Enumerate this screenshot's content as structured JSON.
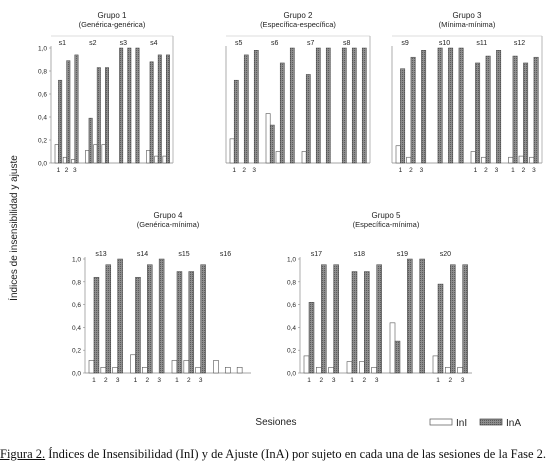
{
  "figure": {
    "ylabel": "Índices de insensibilidad y ajuste",
    "xlabel": "Sesiones",
    "legend": {
      "inl": "InI",
      "ina": "InA"
    },
    "caption_label": "Figura 2.",
    "caption_text": " Índices de Insensibilidad (InI) y de Ajuste (InA) por sujeto en cada una de las sesiones de la Fase 2."
  },
  "chart_data": [
    {
      "type": "bar",
      "title": "Grupo 1",
      "subtitle": "(Genérica-genérica)",
      "ylim": [
        0,
        1
      ],
      "yticks": [
        "0,0",
        "0,2",
        "0,4",
        "0,6",
        "0,8",
        "1,0"
      ],
      "subjects": [
        {
          "name": "s1",
          "sessions": [
            "1",
            "2",
            "3"
          ],
          "InI": [
            0.16,
            0.05,
            0.03
          ],
          "InA": [
            0.72,
            0.89,
            0.94
          ]
        },
        {
          "name": "s2",
          "sessions": [],
          "InI": [
            0.11,
            0.16,
            0.16
          ],
          "InA": [
            0.39,
            0.83,
            0.83
          ]
        },
        {
          "name": "s3",
          "sessions": [],
          "InI": [
            0.0,
            0.0,
            0.0
          ],
          "InA": [
            1.0,
            1.0,
            1.0
          ]
        },
        {
          "name": "s4",
          "sessions": [],
          "InI": [
            0.11,
            0.06,
            0.06
          ],
          "InA": [
            0.88,
            0.94,
            0.94
          ]
        }
      ]
    },
    {
      "type": "bar",
      "title": "Grupo 2",
      "subtitle": "(Específica-específica)",
      "ylim": [
        0,
        1
      ],
      "yticks": [],
      "subjects": [
        {
          "name": "s5",
          "sessions": [
            "1",
            "2",
            "3"
          ],
          "InI": [
            0.21,
            0.0,
            0.0
          ],
          "InA": [
            0.72,
            0.94,
            0.98
          ]
        },
        {
          "name": "s6",
          "sessions": [],
          "InI": [
            0.43,
            0.1,
            0.0
          ],
          "InA": [
            0.33,
            0.87,
            1.0
          ]
        },
        {
          "name": "s7",
          "sessions": [],
          "InI": [
            0.1,
            0.0,
            0.0
          ],
          "InA": [
            0.77,
            1.0,
            1.0
          ]
        },
        {
          "name": "s8",
          "sessions": [],
          "InI": [
            0.0,
            0.0,
            0.0
          ],
          "InA": [
            1.0,
            1.0,
            1.0
          ]
        }
      ]
    },
    {
      "type": "bar",
      "title": "Grupo 3",
      "subtitle": "(Mínima-mínima)",
      "ylim": [
        0,
        1
      ],
      "yticks": [],
      "subjects": [
        {
          "name": "s9",
          "sessions": [
            "1",
            "2",
            "3"
          ],
          "InI": [
            0.15,
            0.05,
            0.0
          ],
          "InA": [
            0.82,
            0.92,
            0.98
          ]
        },
        {
          "name": "s10",
          "sessions": [],
          "InI": [
            0.0,
            0.0,
            0.0
          ],
          "InA": [
            1.0,
            1.0,
            1.0
          ]
        },
        {
          "name": "s11",
          "sessions": [
            "1",
            "2",
            "3"
          ],
          "InI": [
            0.1,
            0.05,
            0.0
          ],
          "InA": [
            0.87,
            0.93,
            0.98
          ]
        },
        {
          "name": "s12",
          "sessions": [
            "1",
            "2",
            "3"
          ],
          "InI": [
            0.05,
            0.06,
            0.05
          ],
          "InA": [
            0.93,
            0.87,
            0.92
          ]
        }
      ]
    },
    {
      "type": "bar",
      "title": "Grupo 4",
      "subtitle": "(Genérica-mínima)",
      "ylim": [
        0,
        1
      ],
      "yticks": [
        "0,0",
        "0,2",
        "0,4",
        "0,6",
        "0,8",
        "1,0"
      ],
      "subjects": [
        {
          "name": "s13",
          "sessions": [
            "1",
            "2",
            "3"
          ],
          "InI": [
            0.11,
            0.05,
            0.05
          ],
          "InA": [
            0.84,
            0.95,
            1.0
          ]
        },
        {
          "name": "s14",
          "sessions": [
            "1",
            "2",
            "3"
          ],
          "InI": [
            0.16,
            0.05,
            0.0
          ],
          "InA": [
            0.84,
            0.95,
            1.0
          ]
        },
        {
          "name": "s15",
          "sessions": [
            "1",
            "2",
            "3"
          ],
          "InI": [
            0.11,
            0.11,
            0.05
          ],
          "InA": [
            0.89,
            0.89,
            0.95
          ]
        },
        {
          "name": "s16",
          "sessions": [],
          "InI": [
            0.11,
            0.05,
            0.05
          ],
          "InA": [
            0.0,
            0.0,
            0.0
          ]
        }
      ]
    },
    {
      "type": "bar",
      "title": "Grupo 5",
      "subtitle": "(Específica-mínima)",
      "ylim": [
        0,
        1
      ],
      "yticks": [
        "0,0",
        "0,2",
        "0,4",
        "0,6",
        "0,8",
        "1,0"
      ],
      "subjects": [
        {
          "name": "s17",
          "sessions": [
            "1",
            "2",
            "3"
          ],
          "InI": [
            0.15,
            0.05,
            0.05
          ],
          "InA": [
            0.62,
            0.95,
            0.95
          ]
        },
        {
          "name": "s18",
          "sessions": [
            "1",
            "2",
            "3"
          ],
          "InI": [
            0.1,
            0.1,
            0.05
          ],
          "InA": [
            0.89,
            0.89,
            0.95
          ]
        },
        {
          "name": "s19",
          "sessions": [],
          "InI": [
            0.44,
            0.0,
            0.0
          ],
          "InA": [
            0.28,
            1.0,
            1.0
          ]
        },
        {
          "name": "s20",
          "sessions": [
            "1",
            "2",
            "3"
          ],
          "InI": [
            0.15,
            0.05,
            0.05
          ],
          "InA": [
            0.78,
            0.95,
            0.95
          ]
        }
      ]
    }
  ]
}
